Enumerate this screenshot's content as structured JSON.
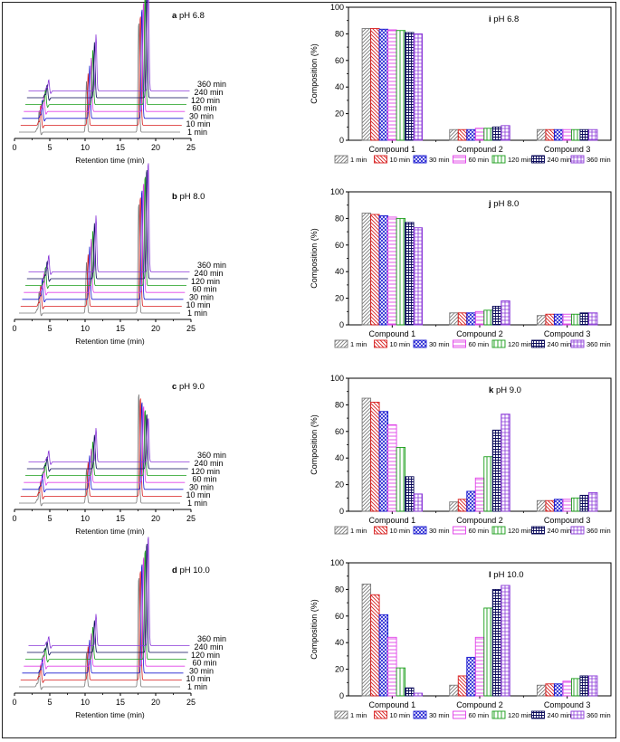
{
  "colors": {
    "1 min": "#7a7a7a",
    "10 min": "#d81e1e",
    "30 min": "#1a1ad0",
    "60 min": "#e040e8",
    "120 min": "#1a9e1a",
    "240 min": "#0a0a5a",
    "360 min": "#8a38d8"
  },
  "series_order": [
    "1 min",
    "10 min",
    "30 min",
    "60 min",
    "120 min",
    "240 min",
    "360 min"
  ],
  "stack_labels": [
    "360 min",
    "240 min",
    "120 min",
    "60 min",
    "30 min",
    "10 min",
    "1 min"
  ],
  "chart_data": [
    {
      "id": "a",
      "type": "line",
      "panel_letter": "a",
      "title": "pH 6.8",
      "xlabel": "Retention time (min)",
      "xlim": [
        0,
        25
      ],
      "xticks": [
        "0",
        "5",
        "10",
        "15",
        "20",
        "25"
      ],
      "peaks_retention_min": [
        3.5,
        10.2,
        17.6
      ],
      "relative_heights": {
        "1 min": [
          0.2,
          0.45,
          1.0
        ],
        "360 min": [
          0.1,
          0.5,
          1.0
        ]
      }
    },
    {
      "id": "b",
      "type": "line",
      "panel_letter": "b",
      "title": "pH 8.0",
      "xlabel": "Retention time (min)",
      "xlim": [
        0,
        25
      ],
      "xticks": [
        "0",
        "5",
        "10",
        "15",
        "20",
        "25"
      ],
      "peaks_retention_min": [
        3.5,
        10.2,
        17.6
      ],
      "relative_heights": {
        "1 min": [
          0.2,
          0.45,
          1.0
        ],
        "360 min": [
          0.15,
          0.5,
          1.0
        ]
      }
    },
    {
      "id": "c",
      "type": "line",
      "panel_letter": "c",
      "title": "pH 9.0",
      "xlabel": "Retention time (min)",
      "xlim": [
        0,
        25
      ],
      "xticks": [
        "0",
        "5",
        "10",
        "15",
        "20",
        "25"
      ],
      "peaks_retention_min": [
        3.5,
        10.2,
        17.6
      ],
      "relative_heights": {
        "1 min": [
          0.15,
          0.3,
          1.0
        ],
        "360 min": [
          0.1,
          0.3,
          0.4
        ]
      }
    },
    {
      "id": "d",
      "type": "line",
      "panel_letter": "d",
      "title": "pH 10.0",
      "xlabel": "Retention time (min)",
      "xlim": [
        0,
        25
      ],
      "xticks": [
        "0",
        "5",
        "10",
        "15",
        "20",
        "25"
      ],
      "peaks_retention_min": [
        3.5,
        10.2,
        17.6
      ],
      "relative_heights": {
        "1 min": [
          0.15,
          0.3,
          1.0
        ],
        "360 min": [
          0.08,
          0.28,
          1.0
        ]
      }
    },
    {
      "id": "i",
      "type": "bar",
      "panel_letter": "i",
      "title": "pH 6.8",
      "ylabel": "Composition (%)",
      "ylim": [
        0,
        100
      ],
      "yticks": [
        "0",
        "20",
        "40",
        "60",
        "80",
        "100"
      ],
      "categories": [
        "Compound 1",
        "Compound 2",
        "Compound 3"
      ],
      "series": [
        {
          "name": "1 min",
          "values": [
            84,
            8,
            8
          ]
        },
        {
          "name": "10 min",
          "values": [
            84,
            8,
            8
          ]
        },
        {
          "name": "30 min",
          "values": [
            83.5,
            8,
            8
          ]
        },
        {
          "name": "60 min",
          "values": [
            83,
            9,
            8
          ]
        },
        {
          "name": "120 min",
          "values": [
            82.5,
            9,
            8
          ]
        },
        {
          "name": "240 min",
          "values": [
            81,
            10,
            8
          ]
        },
        {
          "name": "360 min",
          "values": [
            80,
            11,
            8
          ]
        }
      ]
    },
    {
      "id": "j",
      "type": "bar",
      "panel_letter": "j",
      "title": "pH 8.0",
      "ylabel": "Composition (%)",
      "ylim": [
        0,
        100
      ],
      "yticks": [
        "0",
        "20",
        "40",
        "60",
        "80",
        "100"
      ],
      "categories": [
        "Compound 1",
        "Compound 2",
        "Compound 3"
      ],
      "series": [
        {
          "name": "1 min",
          "values": [
            84,
            9,
            7
          ]
        },
        {
          "name": "10 min",
          "values": [
            83,
            9,
            8
          ]
        },
        {
          "name": "30 min",
          "values": [
            82,
            9,
            8
          ]
        },
        {
          "name": "60 min",
          "values": [
            81,
            10,
            8
          ]
        },
        {
          "name": "120 min",
          "values": [
            80,
            11,
            8
          ]
        },
        {
          "name": "240 min",
          "values": [
            77,
            14,
            9
          ]
        },
        {
          "name": "360 min",
          "values": [
            73,
            18,
            9
          ]
        }
      ]
    },
    {
      "id": "k",
      "type": "bar",
      "panel_letter": "k",
      "title": "pH 9.0",
      "ylabel": "Composition (%)",
      "ylim": [
        0,
        100
      ],
      "yticks": [
        "0",
        "20",
        "40",
        "60",
        "80",
        "100"
      ],
      "categories": [
        "Compound 1",
        "Compound 2",
        "Compound 3"
      ],
      "series": [
        {
          "name": "1 min",
          "values": [
            85,
            7,
            8
          ]
        },
        {
          "name": "10 min",
          "values": [
            82,
            9,
            8
          ]
        },
        {
          "name": "30 min",
          "values": [
            75,
            15,
            9
          ]
        },
        {
          "name": "60 min",
          "values": [
            65,
            25,
            9
          ]
        },
        {
          "name": "120 min",
          "values": [
            48,
            41,
            10
          ]
        },
        {
          "name": "240 min",
          "values": [
            26,
            61,
            12
          ]
        },
        {
          "name": "360 min",
          "values": [
            13,
            73,
            14
          ]
        }
      ]
    },
    {
      "id": "l",
      "type": "bar",
      "panel_letter": "l",
      "title": "pH 10.0",
      "ylabel": "Composition (%)",
      "ylim": [
        0,
        100
      ],
      "yticks": [
        "0",
        "20",
        "40",
        "60",
        "80",
        "100"
      ],
      "categories": [
        "Compound 1",
        "Compound 2",
        "Compound 3"
      ],
      "series": [
        {
          "name": "1 min",
          "values": [
            84,
            8,
            8
          ]
        },
        {
          "name": "10 min",
          "values": [
            76,
            15,
            9
          ]
        },
        {
          "name": "30 min",
          "values": [
            61,
            29,
            9
          ]
        },
        {
          "name": "60 min",
          "values": [
            44,
            44,
            11
          ]
        },
        {
          "name": "120 min",
          "values": [
            21,
            66,
            13
          ]
        },
        {
          "name": "240 min",
          "values": [
            6,
            80,
            15
          ]
        },
        {
          "name": "360 min",
          "values": [
            2,
            83,
            15
          ]
        }
      ]
    }
  ]
}
